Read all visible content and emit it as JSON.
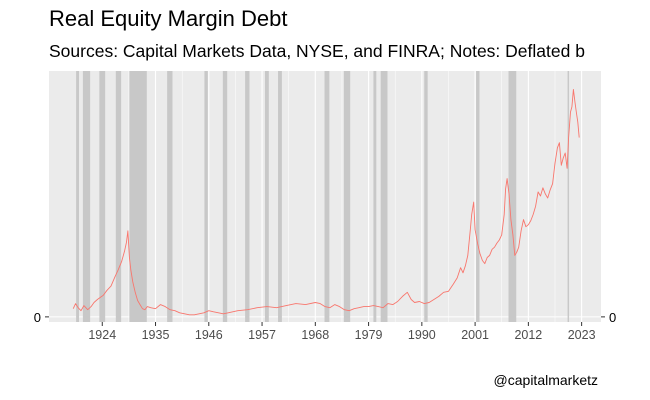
{
  "chart_data": {
    "type": "line",
    "title": "Real Equity Margin Debt",
    "subtitle": "Sources: Capital Markets Data, NYSE, and FINRA; Notes: Deflated b",
    "caption": "@capitalmarketz",
    "xlabel": "",
    "ylabel": "",
    "xlim": [
      1913,
      2027
    ],
    "ylim": [
      -5,
      240
    ],
    "x_ticks": [
      1924,
      1935,
      1946,
      1957,
      1968,
      1979,
      1990,
      2001,
      2012,
      2023
    ],
    "y_ticks": [
      0
    ],
    "y_tick_labels_left": [
      "0"
    ],
    "y_tick_labels_right": [
      "0"
    ],
    "grid": true,
    "legend": "none",
    "series": [
      {
        "color": "#f8766d",
        "x": [
          1918.0,
          1918.5,
          1919.0,
          1919.6,
          1920.2,
          1921.0,
          1921.7,
          1922.3,
          1923.0,
          1923.6,
          1924.2,
          1925.0,
          1925.8,
          1926.6,
          1927.3,
          1928.0,
          1928.6,
          1929.0,
          1929.3,
          1929.6,
          1929.9,
          1930.3,
          1930.8,
          1931.3,
          1931.8,
          1932.3,
          1932.8,
          1933.3,
          1934.0,
          1935.0,
          1936.0,
          1937.0,
          1938.0,
          1939.0,
          1940.0,
          1941.0,
          1942.0,
          1943.0,
          1944.0,
          1945.0,
          1946.0,
          1947.0,
          1948.0,
          1949.0,
          1950.0,
          1952.0,
          1954.0,
          1956.0,
          1958.0,
          1960.0,
          1962.0,
          1964.0,
          1966.0,
          1968.0,
          1969.0,
          1970.0,
          1971.0,
          1972.0,
          1973.0,
          1974.0,
          1975.0,
          1976.0,
          1977.0,
          1978.0,
          1979.0,
          1980.0,
          1981.0,
          1982.0,
          1983.0,
          1984.0,
          1985.0,
          1986.0,
          1987.0,
          1987.8,
          1988.5,
          1989.5,
          1990.5,
          1991.5,
          1992.5,
          1993.5,
          1994.5,
          1995.5,
          1996.5,
          1997.3,
          1998.0,
          1998.5,
          1999.0,
          1999.5,
          2000.0,
          2000.3,
          2000.7,
          2001.0,
          2001.5,
          2002.0,
          2002.5,
          2003.0,
          2003.5,
          2004.0,
          2004.5,
          2005.0,
          2005.5,
          2006.0,
          2006.5,
          2007.0,
          2007.3,
          2007.6,
          2008.0,
          2008.4,
          2008.8,
          2009.2,
          2009.6,
          2010.0,
          2010.5,
          2011.0,
          2011.5,
          2012.0,
          2012.5,
          2013.0,
          2013.5,
          2014.0,
          2014.5,
          2015.0,
          2015.5,
          2016.0,
          2016.5,
          2017.0,
          2017.5,
          2018.0,
          2018.4,
          2018.8,
          2019.2,
          2019.6,
          2020.0,
          2020.3,
          2020.7,
          2021.0,
          2021.3,
          2021.6,
          2021.9,
          2022.2,
          2022.5
        ],
        "y": [
          8,
          13,
          9,
          6,
          11,
          7,
          10,
          14,
          17,
          19,
          21,
          26,
          30,
          39,
          46,
          54,
          64,
          73,
          84,
          58,
          46,
          34,
          24,
          16,
          12,
          8,
          7,
          10,
          9,
          8,
          12,
          10,
          7,
          6,
          4,
          3,
          2,
          2,
          3,
          4,
          6,
          5,
          4,
          3,
          4,
          6,
          7,
          9,
          10,
          9,
          11,
          13,
          12,
          14,
          13,
          10,
          9,
          12,
          10,
          7,
          6,
          8,
          9,
          10,
          10,
          11,
          10,
          9,
          13,
          12,
          15,
          20,
          24,
          17,
          14,
          15,
          13,
          14,
          17,
          20,
          24,
          25,
          32,
          38,
          48,
          43,
          50,
          60,
          85,
          100,
          112,
          85,
          72,
          62,
          55,
          52,
          58,
          60,
          66,
          68,
          72,
          75,
          80,
          100,
          125,
          135,
          120,
          95,
          80,
          60,
          63,
          68,
          84,
          95,
          88,
          90,
          94,
          100,
          108,
          122,
          118,
          126,
          120,
          116,
          124,
          130,
          150,
          165,
          170,
          148,
          155,
          160,
          145,
          175,
          200,
          205,
          222,
          210,
          200,
          190,
          175
        ]
      }
    ],
    "recessions": [
      [
        1918.6,
        1919.2
      ],
      [
        1920.0,
        1921.5
      ],
      [
        1923.4,
        1924.6
      ],
      [
        1926.8,
        1927.9
      ],
      [
        1929.6,
        1933.2
      ],
      [
        1937.4,
        1938.5
      ],
      [
        1945.1,
        1945.8
      ],
      [
        1948.9,
        1949.8
      ],
      [
        1953.5,
        1954.4
      ],
      [
        1957.6,
        1958.4
      ],
      [
        1960.3,
        1961.1
      ],
      [
        1969.9,
        1970.9
      ],
      [
        1973.9,
        1975.2
      ],
      [
        1980.0,
        1980.6
      ],
      [
        1981.5,
        1982.9
      ],
      [
        1990.5,
        1991.2
      ],
      [
        2001.2,
        2001.9
      ],
      [
        2007.9,
        2009.5
      ],
      [
        2020.1,
        2020.4
      ]
    ]
  }
}
